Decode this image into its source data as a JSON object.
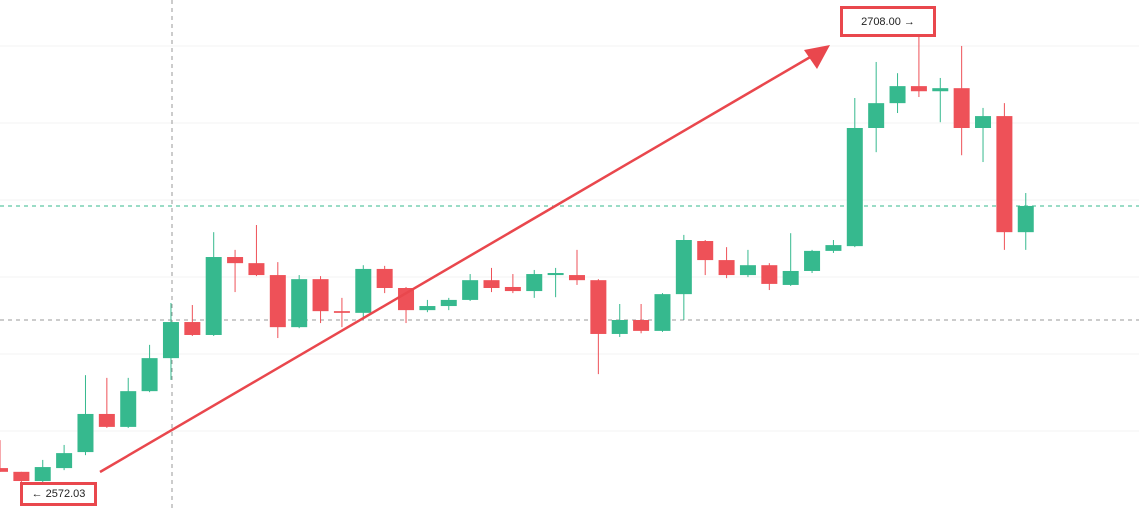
{
  "chart_data": {
    "type": "candlestick",
    "high_label": "2708.00 →",
    "low_label": "← 2572.03",
    "up_color": "#36b98e",
    "down_color": "#ee5158",
    "ylim": [
      2563.5,
      2713.9
    ],
    "open": [
      2576.4,
      2575.3,
      2572.6,
      2576.4,
      2581.1,
      2592.3,
      2588.5,
      2599.0,
      2608.7,
      2619.3,
      2615.5,
      2638.4,
      2636.6,
      2633.1,
      2617.8,
      2631.9,
      2622.5,
      2622.0,
      2634.9,
      2629.3,
      2622.8,
      2624.0,
      2625.8,
      2631.6,
      2629.6,
      2628.4,
      2633.1,
      2633.1,
      2631.6,
      2615.8,
      2619.9,
      2616.7,
      2627.5,
      2643.1,
      2637.5,
      2633.1,
      2636.0,
      2630.2,
      2634.3,
      2640.2,
      2641.6,
      2676.3,
      2683.6,
      2688.6,
      2687.1,
      2688.0,
      2676.3,
      2679.8,
      2645.7
    ],
    "high": [
      2584.6,
      2575.3,
      2578.8,
      2583.2,
      2603.7,
      2602.9,
      2602.9,
      2612.6,
      2624.9,
      2624.3,
      2645.7,
      2640.5,
      2647.8,
      2636.9,
      2633.1,
      2632.8,
      2626.4,
      2636.0,
      2635.8,
      2629.6,
      2625.8,
      2626.4,
      2633.4,
      2635.2,
      2633.4,
      2634.6,
      2635.2,
      2640.5,
      2631.9,
      2624.6,
      2624.6,
      2627.8,
      2644.9,
      2643.4,
      2641.3,
      2640.5,
      2636.6,
      2645.4,
      2640.5,
      2643.4,
      2685.1,
      2695.7,
      2692.4,
      2708.0,
      2691.0,
      2700.4,
      2682.2,
      2683.6,
      2657.2
    ],
    "low": [
      2575.3,
      2572.03,
      2572.3,
      2575.8,
      2580.2,
      2588.2,
      2588.2,
      2598.7,
      2602.3,
      2615.2,
      2615.2,
      2628.1,
      2632.8,
      2614.6,
      2617.5,
      2619.0,
      2617.8,
      2620.5,
      2627.8,
      2619.0,
      2622.2,
      2622.8,
      2625.5,
      2628.1,
      2627.8,
      2626.4,
      2626.6,
      2630.2,
      2604.0,
      2614.9,
      2616.0,
      2616.4,
      2619.9,
      2633.1,
      2632.2,
      2632.5,
      2628.7,
      2629.9,
      2633.7,
      2639.6,
      2641.3,
      2669.2,
      2680.7,
      2685.4,
      2678.0,
      2668.3,
      2666.3,
      2640.5,
      2640.5
    ],
    "close": [
      2575.3,
      2572.6,
      2576.7,
      2580.8,
      2592.3,
      2588.5,
      2599.0,
      2608.7,
      2619.3,
      2615.5,
      2638.4,
      2636.6,
      2633.1,
      2617.8,
      2631.9,
      2622.5,
      2622.0,
      2634.9,
      2629.3,
      2622.8,
      2624.0,
      2625.8,
      2631.6,
      2629.3,
      2628.4,
      2633.4,
      2633.7,
      2631.6,
      2615.8,
      2619.9,
      2616.7,
      2627.5,
      2643.4,
      2637.5,
      2633.1,
      2636.0,
      2630.5,
      2634.3,
      2640.2,
      2641.9,
      2676.3,
      2683.6,
      2688.6,
      2687.1,
      2688.0,
      2676.3,
      2679.8,
      2645.7,
      2653.4
    ]
  }
}
